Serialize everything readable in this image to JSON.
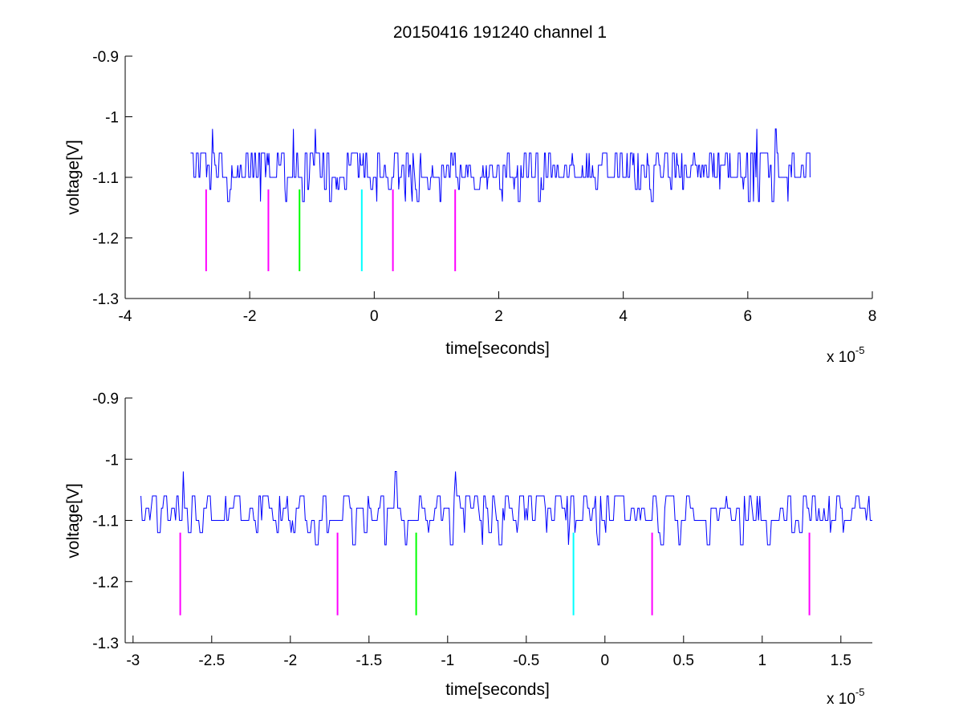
{
  "figure": {
    "title": "20150416 191240 channel 1"
  },
  "colors": {
    "signal": "#0000ff",
    "axis": "#000000",
    "marker_magenta": "#ff00ff",
    "marker_green": "#00ff00",
    "marker_cyan": "#00ffff"
  },
  "chart_data": [
    {
      "type": "line",
      "title": "20150416 191240 channel 1",
      "xlabel": "time[seconds]",
      "ylabel": "voltage[V]",
      "x_exponent_label": "x 10",
      "x_exponent": "-5",
      "xlim": [
        -4,
        8
      ],
      "ylim": [
        -1.3,
        -0.9
      ],
      "y_reversed": true,
      "xticks": [
        -4,
        -2,
        0,
        2,
        4,
        6,
        8
      ],
      "xtick_labels": [
        "-4",
        "-2",
        "0",
        "2",
        "4",
        "6",
        "8"
      ],
      "yticks": [
        -0.9,
        -1,
        -1.1,
        -1.2,
        -1.3
      ],
      "ytick_labels": [
        "-0.9",
        "-1",
        "-1.1",
        "-1.2",
        "-1.3"
      ],
      "grid": false,
      "series": [
        {
          "kind": "signal",
          "x_start": -2.95,
          "x_end": 7.0,
          "baseline": -1.1,
          "levels": [
            -1.14,
            -1.12,
            -1.1,
            -1.08,
            -1.06
          ],
          "peaks": [
            {
              "x": -2.6,
              "y": -1.02
            },
            {
              "x": -1.3,
              "y": -1.02
            },
            {
              "x": -0.95,
              "y": -1.02
            },
            {
              "x": 6.15,
              "y": -1.02
            },
            {
              "x": 6.45,
              "y": -1.02
            }
          ]
        }
      ],
      "markers": [
        {
          "x": -2.7,
          "y_top": -1.12,
          "y_bottom": -1.255,
          "color": "magenta"
        },
        {
          "x": -1.7,
          "y_top": -1.12,
          "y_bottom": -1.255,
          "color": "magenta"
        },
        {
          "x": -1.2,
          "y_top": -1.12,
          "y_bottom": -1.255,
          "color": "green"
        },
        {
          "x": -0.2,
          "y_top": -1.12,
          "y_bottom": -1.255,
          "color": "cyan"
        },
        {
          "x": 0.3,
          "y_top": -1.12,
          "y_bottom": -1.255,
          "color": "magenta"
        },
        {
          "x": 1.3,
          "y_top": -1.12,
          "y_bottom": -1.255,
          "color": "magenta"
        }
      ]
    },
    {
      "type": "line",
      "xlabel": "time[seconds]",
      "ylabel": "voltage[V]",
      "x_exponent_label": "x 10",
      "x_exponent": "-5",
      "xlim": [
        -3.05,
        1.7
      ],
      "ylim": [
        -1.3,
        -0.9
      ],
      "y_reversed": true,
      "xticks": [
        -3,
        -2.5,
        -2,
        -1.5,
        -1,
        -0.5,
        0,
        0.5,
        1,
        1.5
      ],
      "xtick_labels": [
        "-3",
        "-2.5",
        "-2",
        "-1.5",
        "-1",
        "-0.5",
        "0",
        "0.5",
        "1",
        "1.5"
      ],
      "yticks": [
        -0.9,
        -1,
        -1.1,
        -1.2,
        -1.3
      ],
      "ytick_labels": [
        "-0.9",
        "-1",
        "-1.1",
        "-1.2",
        "-1.3"
      ],
      "grid": false,
      "series": [
        {
          "kind": "signal",
          "x_start": -2.95,
          "x_end": 1.7,
          "baseline": -1.1,
          "levels": [
            -1.14,
            -1.12,
            -1.1,
            -1.08,
            -1.06
          ],
          "peaks": [
            {
              "x": -2.68,
              "y": -1.02
            },
            {
              "x": -1.33,
              "y": -1.02
            },
            {
              "x": -0.95,
              "y": -1.02
            }
          ]
        }
      ],
      "markers": [
        {
          "x": -2.7,
          "y_top": -1.12,
          "y_bottom": -1.255,
          "color": "magenta"
        },
        {
          "x": -1.7,
          "y_top": -1.12,
          "y_bottom": -1.255,
          "color": "magenta"
        },
        {
          "x": -1.2,
          "y_top": -1.12,
          "y_bottom": -1.255,
          "color": "green"
        },
        {
          "x": -0.2,
          "y_top": -1.12,
          "y_bottom": -1.255,
          "color": "cyan"
        },
        {
          "x": 0.3,
          "y_top": -1.12,
          "y_bottom": -1.255,
          "color": "magenta"
        },
        {
          "x": 1.3,
          "y_top": -1.12,
          "y_bottom": -1.255,
          "color": "magenta"
        }
      ]
    }
  ]
}
